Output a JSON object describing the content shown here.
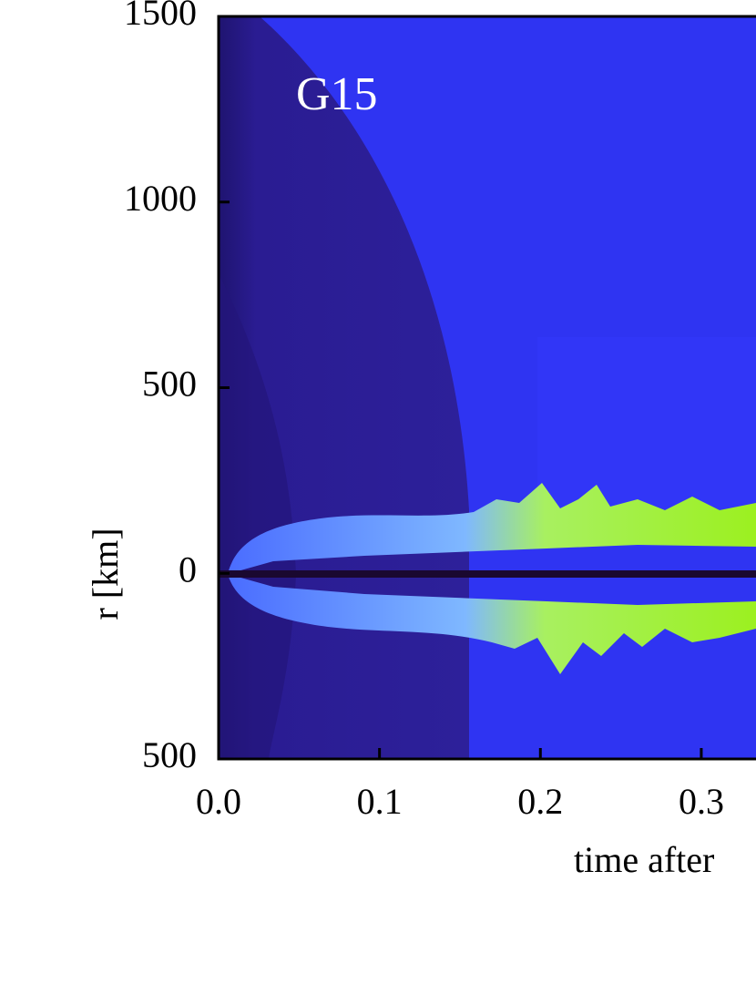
{
  "chart_data": {
    "type": "heatmap",
    "annotation": "G15",
    "xlabel": "time after",
    "ylabel": "r [km]",
    "xlim": [
      0,
      0.334
    ],
    "ylim": [
      -500,
      1500
    ],
    "xticks": [
      {
        "value": 0,
        "label": "0.0"
      },
      0.1,
      0.2,
      0.3
    ],
    "yticks": [
      {
        "value": -500,
        "label": "500"
      },
      0,
      500,
      1000,
      1500
    ]
  }
}
